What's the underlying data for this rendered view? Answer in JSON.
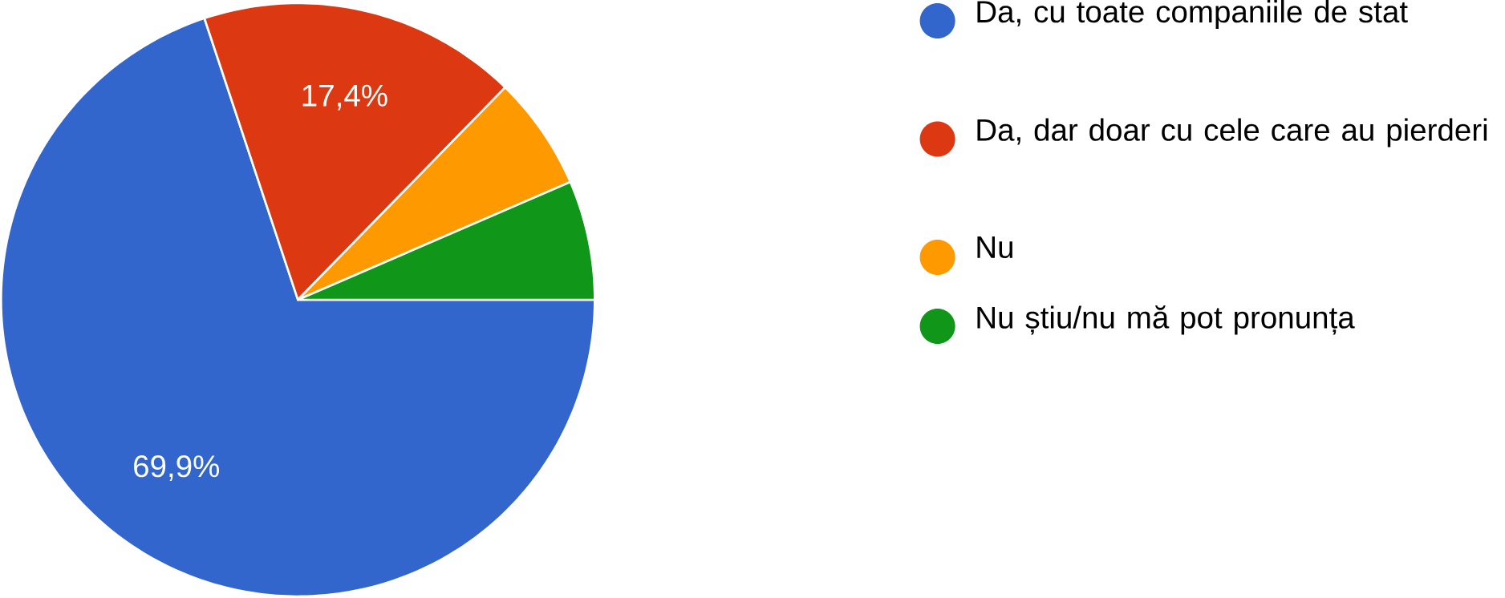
{
  "chart_data": {
    "type": "pie",
    "categories": [
      "Da, cu toate companiile de stat",
      "Da, dar doar cu cele care au pierderi",
      "Nu",
      "Nu știu/nu mă pot pronunța"
    ],
    "values": [
      69.9,
      17.4,
      6.2,
      6.5
    ],
    "value_labels": [
      "69,9%",
      "17,4%",
      null,
      null
    ],
    "colors": [
      "#3366cc",
      "#dc3912",
      "#ff9900",
      "#109618"
    ],
    "legend": "right"
  }
}
